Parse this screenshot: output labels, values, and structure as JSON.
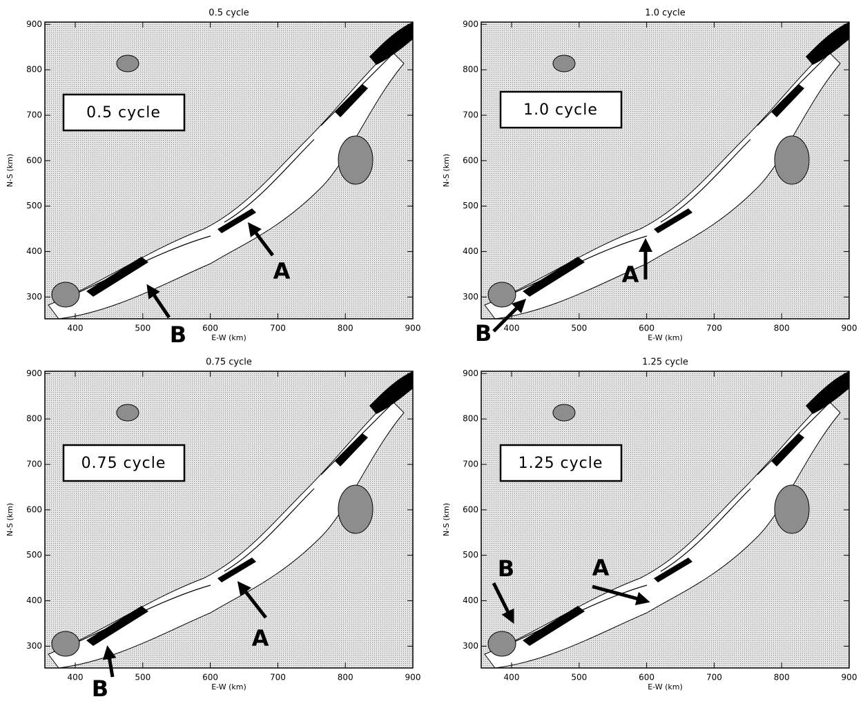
{
  "chart_data": [
    {
      "type": "contour",
      "title": "0.5 cycle",
      "label": "0.5 cycle",
      "xlabel": "E-W (km)",
      "ylabel": "N-S (km)",
      "xlim": [
        355,
        900
      ],
      "ylim": [
        252,
        905
      ],
      "xticks": [
        400,
        500,
        600,
        700,
        800,
        900
      ],
      "yticks": [
        300,
        400,
        500,
        600,
        700,
        800,
        900
      ],
      "annotations": [
        "A",
        "B"
      ]
    },
    {
      "type": "contour",
      "title": "1.0 cycle",
      "label": "1.0 cycle",
      "xlabel": "E-W (km)",
      "ylabel": "N-S (km)",
      "xlim": [
        355,
        900
      ],
      "ylim": [
        252,
        905
      ],
      "xticks": [
        400,
        500,
        600,
        700,
        800,
        900
      ],
      "yticks": [
        300,
        400,
        500,
        600,
        700,
        800,
        900
      ],
      "annotations": [
        "A",
        "B"
      ]
    },
    {
      "type": "contour",
      "title": "0.75 cycle",
      "label": "0.75 cycle",
      "xlabel": "E-W (km)",
      "ylabel": "N-S (km)",
      "xlim": [
        355,
        900
      ],
      "ylim": [
        252,
        905
      ],
      "xticks": [
        400,
        500,
        600,
        700,
        800,
        900
      ],
      "yticks": [
        300,
        400,
        500,
        600,
        700,
        800,
        900
      ],
      "annotations": [
        "A",
        "B"
      ]
    },
    {
      "type": "contour",
      "title": "1.25 cycle",
      "label": "1.25 cycle",
      "xlabel": "E-W (km)",
      "ylabel": "N-S (km)",
      "xlim": [
        355,
        900
      ],
      "ylim": [
        252,
        905
      ],
      "xticks": [
        400,
        500,
        600,
        700,
        800,
        900
      ],
      "yticks": [
        300,
        400,
        500,
        600,
        700,
        800,
        900
      ],
      "annotations": [
        "A",
        "B"
      ]
    }
  ]
}
